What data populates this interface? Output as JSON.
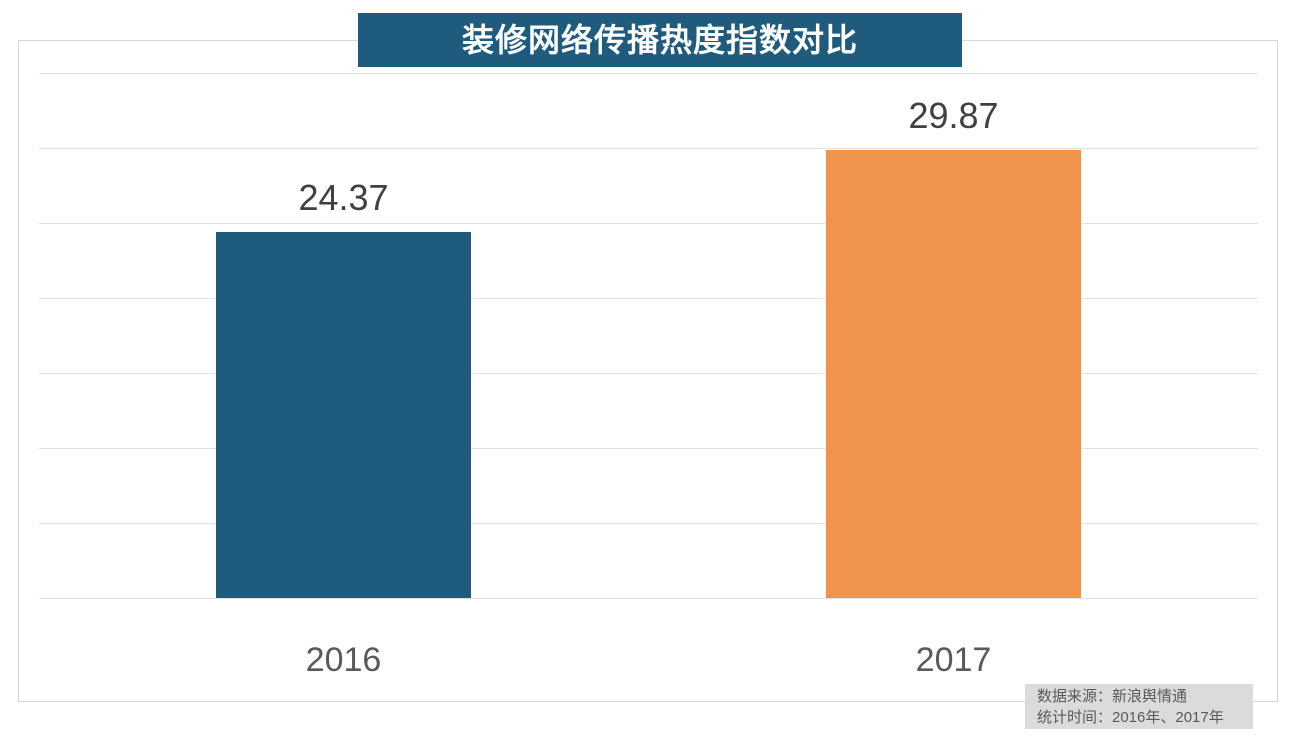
{
  "chart_data": {
    "type": "bar",
    "title": "装修网络传播热度指数对比",
    "categories": [
      "2016",
      "2017"
    ],
    "values": [
      24.37,
      29.87
    ],
    "value_labels": [
      "24.37",
      "29.87"
    ],
    "bar_colors": [
      "#1E5B7C",
      "#F0944C"
    ],
    "ylim": [
      0,
      35
    ],
    "grid_step": 5,
    "grid": "horizontal gridlines only, no y tick labels, no legend",
    "xlabel": "",
    "ylabel": ""
  },
  "title_bar": {
    "bg_color": "#1E5B7C",
    "text_color": "#FFFFFF"
  },
  "footer": {
    "source_line": "数据来源：新浪舆情通",
    "period_line": "统计时间：2016年、2017年",
    "bg_color": "#DBDBDB",
    "text_color": "#595959"
  },
  "colors": {
    "gridline": "#E1E1E1",
    "plot_border": "#D6D6D6",
    "value_label": "#404040",
    "axis_label": "#595959",
    "background": "#FFFFFF"
  }
}
